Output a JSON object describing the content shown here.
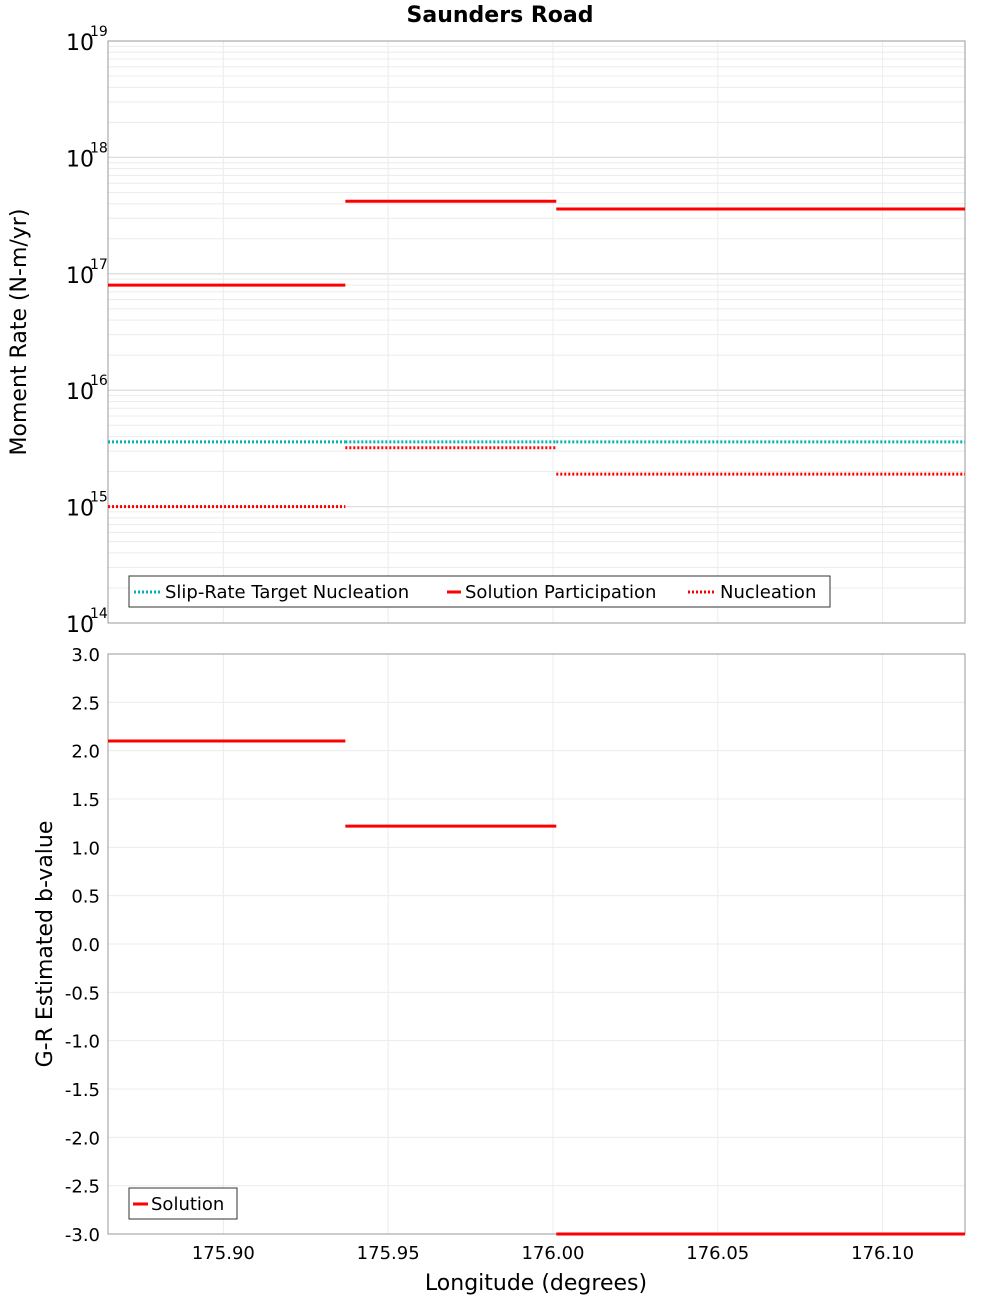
{
  "title": "Saunders Road",
  "chart_data": [
    {
      "type": "line",
      "panel": "top",
      "ylabel": "Moment Rate (N-m/yr)",
      "yscale": "log",
      "ylim": [
        100000000000000.0,
        1e+19
      ],
      "xlim": [
        175.865,
        176.125
      ],
      "ytick_exponents": [
        "14",
        "15",
        "16",
        "17",
        "18",
        "19"
      ],
      "grid": true,
      "legend_position": "bottom-left",
      "colors": {
        "solution": "#ff0000",
        "target": "#00b3b3"
      },
      "series": [
        {
          "name": "Slip-Rate Target Nucleation",
          "style": "dotted",
          "color": "#00b3b3",
          "segments": [
            {
              "x": [
                175.865,
                175.937
              ],
              "y": 3600000000000000.0
            },
            {
              "x": [
                175.937,
                176.001
              ],
              "y": 3600000000000000.0
            },
            {
              "x": [
                176.001,
                176.125
              ],
              "y": 3600000000000000.0
            }
          ]
        },
        {
          "name": "Solution Participation",
          "style": "solid",
          "color": "#ff0000",
          "segments": [
            {
              "x": [
                175.865,
                175.937
              ],
              "y": 8e+16
            },
            {
              "x": [
                175.937,
                176.001
              ],
              "y": 4.2e+17
            },
            {
              "x": [
                176.001,
                176.125
              ],
              "y": 3.6e+17
            }
          ]
        },
        {
          "name": "Nucleation",
          "style": "dotted",
          "color": "#ff0000",
          "segments": [
            {
              "x": [
                175.865,
                175.937
              ],
              "y": 1000000000000000.0
            },
            {
              "x": [
                175.937,
                176.001
              ],
              "y": 3200000000000000.0
            },
            {
              "x": [
                176.001,
                176.125
              ],
              "y": 1900000000000000.0
            }
          ]
        }
      ]
    },
    {
      "type": "line",
      "panel": "bottom",
      "ylabel": "G-R Estimated b-value",
      "xlabel": "Longitude (degrees)",
      "ylim": [
        -3.0,
        3.0
      ],
      "xlim": [
        175.865,
        176.125
      ],
      "yticks": [
        "3.0",
        "2.5",
        "2.0",
        "1.5",
        "1.0",
        "0.5",
        "0.0",
        "-0.5",
        "-1.0",
        "-1.5",
        "-2.0",
        "-2.5",
        "-3.0"
      ],
      "xticks": [
        "175.90",
        "175.95",
        "176.00",
        "176.05",
        "176.10"
      ],
      "grid": true,
      "legend_position": "bottom-left",
      "series": [
        {
          "name": "Solution",
          "style": "solid",
          "color": "#ff0000",
          "segments": [
            {
              "x": [
                175.865,
                175.937
              ],
              "y": 2.1
            },
            {
              "x": [
                175.937,
                176.001
              ],
              "y": 1.22
            },
            {
              "x": [
                176.001,
                176.125
              ],
              "y": -3.0
            }
          ]
        }
      ]
    }
  ]
}
